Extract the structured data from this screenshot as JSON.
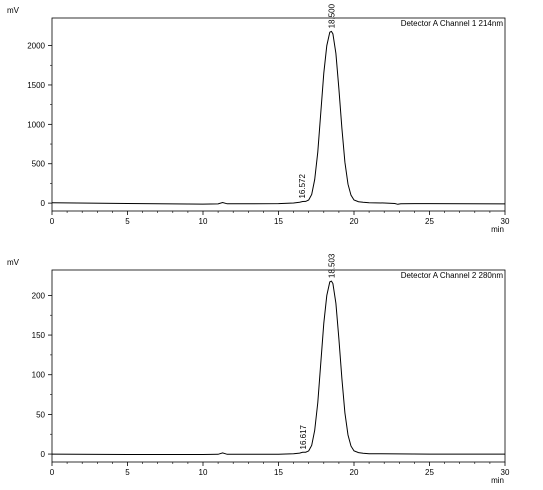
{
  "chart_data": [
    {
      "type": "line",
      "title": "",
      "ylabel": "mV",
      "xlabel": "min",
      "legend": "Detector A Channel 1 214nm",
      "xlim": [
        0,
        30
      ],
      "ylim": [
        -100,
        2350
      ],
      "xticks": [
        0,
        5,
        10,
        15,
        20,
        25,
        30
      ],
      "yticks": [
        0,
        500,
        1000,
        1500,
        2000
      ],
      "grid": false,
      "peaks": [
        {
          "label": "16.572",
          "x": 16.572,
          "y": 20
        },
        {
          "label": "18.500",
          "x": 18.5,
          "y": 2180
        }
      ],
      "series": [
        {
          "x": [
            0,
            5,
            10,
            11.0,
            11.3,
            11.6,
            12,
            15,
            16.0,
            16.4,
            16.6,
            16.8,
            17.0,
            17.2,
            17.4,
            17.6,
            17.8,
            18.0,
            18.2,
            18.4,
            18.5,
            18.6,
            18.8,
            19.0,
            19.2,
            19.4,
            19.6,
            19.8,
            20.0,
            20.3,
            20.6,
            21,
            22,
            22.7,
            22.9,
            23.1,
            24,
            25,
            30
          ],
          "values": [
            5,
            -5,
            -12,
            -10,
            8,
            -8,
            -8,
            -6,
            2,
            12,
            20,
            22,
            40,
            110,
            300,
            650,
            1150,
            1650,
            2000,
            2170,
            2180,
            2150,
            1900,
            1450,
            950,
            520,
            240,
            100,
            40,
            18,
            10,
            5,
            2,
            -5,
            -15,
            -8,
            -6,
            -6,
            -10
          ]
        }
      ]
    },
    {
      "type": "line",
      "title": "",
      "ylabel": "mV",
      "xlabel": "min",
      "legend": "Detector A Channel 2 280nm",
      "xlim": [
        0,
        30
      ],
      "ylim": [
        -10,
        232
      ],
      "xticks": [
        0,
        5,
        10,
        15,
        20,
        25,
        30
      ],
      "yticks": [
        0,
        50,
        100,
        150,
        200
      ],
      "grid": false,
      "peaks": [
        {
          "label": "16.617",
          "x": 16.617,
          "y": 2
        },
        {
          "label": "18.503",
          "x": 18.503,
          "y": 218
        }
      ],
      "series": [
        {
          "x": [
            0,
            5,
            10,
            11.0,
            11.3,
            11.6,
            12,
            15,
            16.0,
            16.4,
            16.6,
            16.8,
            17.0,
            17.2,
            17.4,
            17.6,
            17.8,
            18.0,
            18.2,
            18.4,
            18.5,
            18.6,
            18.8,
            19.0,
            19.2,
            19.4,
            19.6,
            19.8,
            20.0,
            20.3,
            20.6,
            21,
            25,
            30
          ],
          "values": [
            0,
            -0.5,
            -0.5,
            -0.3,
            1.5,
            -0.3,
            -0.3,
            -0.2,
            0.3,
            1.2,
            2.2,
            2.4,
            4,
            11,
            30,
            65,
            115,
            165,
            200,
            217,
            218,
            215,
            190,
            145,
            95,
            52,
            24,
            10,
            4,
            1.8,
            1,
            0.5,
            0,
            0
          ]
        }
      ]
    }
  ]
}
